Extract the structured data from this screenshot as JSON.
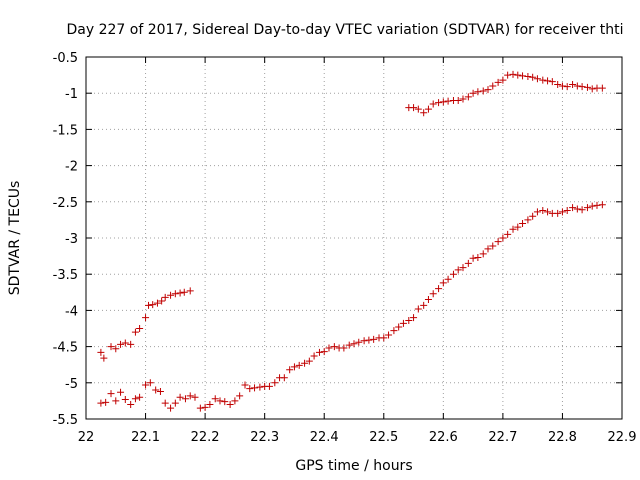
{
  "chart_data": {
    "type": "scatter",
    "title": "Day 227 of 2017, Sidereal Day-to-day VTEC variation (SDTVAR) for receiver thti",
    "xlabel": "GPS time / hours",
    "ylabel": "SDTVAR / TECUs",
    "xlim": [
      22,
      22.9
    ],
    "ylim": [
      -5.5,
      -0.5
    ],
    "xticks": [
      "22",
      "22.1",
      "22.2",
      "22.3",
      "22.4",
      "22.5",
      "22.6",
      "22.7",
      "22.8",
      "22.9"
    ],
    "yticks": [
      "-0.5",
      "-1",
      "-1.5",
      "-2",
      "-2.5",
      "-3",
      "-3.5",
      "-4",
      "-4.5",
      "-5",
      "-5.5"
    ],
    "grid": true,
    "marker": "plus",
    "color": "#c00000",
    "series": [
      {
        "points": [
          [
            22.025,
            -4.58
          ],
          [
            22.03,
            -4.66
          ],
          [
            22.042,
            -4.5
          ],
          [
            22.05,
            -4.53
          ],
          [
            22.058,
            -4.47
          ],
          [
            22.066,
            -4.45
          ],
          [
            22.075,
            -4.47
          ],
          [
            22.083,
            -4.3
          ],
          [
            22.09,
            -4.25
          ],
          [
            22.1,
            -4.1
          ],
          [
            22.105,
            -3.93
          ],
          [
            22.112,
            -3.92
          ],
          [
            22.12,
            -3.9
          ],
          [
            22.127,
            -3.87
          ],
          [
            22.133,
            -3.82
          ],
          [
            22.142,
            -3.79
          ],
          [
            22.15,
            -3.77
          ],
          [
            22.158,
            -3.76
          ],
          [
            22.165,
            -3.75
          ],
          [
            22.175,
            -3.73
          ]
        ]
      },
      {
        "points": [
          [
            22.025,
            -5.28
          ],
          [
            22.033,
            -5.27
          ],
          [
            22.042,
            -5.15
          ],
          [
            22.05,
            -5.25
          ],
          [
            22.058,
            -5.13
          ],
          [
            22.066,
            -5.23
          ],
          [
            22.075,
            -5.3
          ],
          [
            22.083,
            -5.22
          ],
          [
            22.09,
            -5.2
          ],
          [
            22.1,
            -5.03
          ],
          [
            22.108,
            -5.0
          ],
          [
            22.117,
            -5.1
          ],
          [
            22.125,
            -5.12
          ],
          [
            22.133,
            -5.28
          ],
          [
            22.142,
            -5.35
          ],
          [
            22.15,
            -5.28
          ],
          [
            22.158,
            -5.2
          ],
          [
            22.167,
            -5.22
          ],
          [
            22.175,
            -5.18
          ],
          [
            22.183,
            -5.2
          ],
          [
            22.192,
            -5.35
          ],
          [
            22.2,
            -5.34
          ],
          [
            22.208,
            -5.3
          ],
          [
            22.217,
            -5.22
          ],
          [
            22.225,
            -5.25
          ],
          [
            22.233,
            -5.26
          ],
          [
            22.242,
            -5.3
          ],
          [
            22.25,
            -5.25
          ],
          [
            22.258,
            -5.18
          ],
          [
            22.267,
            -5.03
          ],
          [
            22.275,
            -5.08
          ],
          [
            22.283,
            -5.07
          ],
          [
            22.292,
            -5.06
          ],
          [
            22.3,
            -5.05
          ],
          [
            22.308,
            -5.05
          ],
          [
            22.317,
            -5.0
          ],
          [
            22.325,
            -4.93
          ],
          [
            22.333,
            -4.93
          ],
          [
            22.342,
            -4.82
          ],
          [
            22.35,
            -4.78
          ],
          [
            22.358,
            -4.76
          ],
          [
            22.367,
            -4.73
          ],
          [
            22.375,
            -4.7
          ],
          [
            22.383,
            -4.63
          ],
          [
            22.392,
            -4.58
          ],
          [
            22.4,
            -4.57
          ],
          [
            22.408,
            -4.52
          ],
          [
            22.417,
            -4.5
          ],
          [
            22.425,
            -4.52
          ],
          [
            22.433,
            -4.52
          ],
          [
            22.442,
            -4.48
          ],
          [
            22.45,
            -4.46
          ],
          [
            22.458,
            -4.44
          ],
          [
            22.467,
            -4.42
          ],
          [
            22.475,
            -4.41
          ],
          [
            22.483,
            -4.4
          ],
          [
            22.492,
            -4.38
          ],
          [
            22.5,
            -4.38
          ],
          [
            22.508,
            -4.34
          ],
          [
            22.517,
            -4.28
          ],
          [
            22.525,
            -4.23
          ],
          [
            22.533,
            -4.18
          ],
          [
            22.542,
            -4.14
          ],
          [
            22.55,
            -4.1
          ],
          [
            22.558,
            -3.98
          ],
          [
            22.567,
            -3.93
          ],
          [
            22.575,
            -3.85
          ],
          [
            22.583,
            -3.77
          ],
          [
            22.592,
            -3.7
          ],
          [
            22.6,
            -3.62
          ],
          [
            22.608,
            -3.57
          ],
          [
            22.617,
            -3.5
          ],
          [
            22.625,
            -3.44
          ],
          [
            22.633,
            -3.41
          ],
          [
            22.642,
            -3.35
          ],
          [
            22.65,
            -3.28
          ],
          [
            22.658,
            -3.27
          ],
          [
            22.667,
            -3.22
          ],
          [
            22.675,
            -3.15
          ],
          [
            22.683,
            -3.11
          ],
          [
            22.692,
            -3.05
          ],
          [
            22.7,
            -3.0
          ],
          [
            22.708,
            -2.95
          ],
          [
            22.717,
            -2.88
          ],
          [
            22.725,
            -2.85
          ],
          [
            22.733,
            -2.8
          ],
          [
            22.742,
            -2.75
          ],
          [
            22.75,
            -2.7
          ],
          [
            22.758,
            -2.64
          ],
          [
            22.767,
            -2.62
          ],
          [
            22.775,
            -2.64
          ],
          [
            22.783,
            -2.66
          ],
          [
            22.792,
            -2.66
          ],
          [
            22.8,
            -2.64
          ],
          [
            22.808,
            -2.62
          ],
          [
            22.817,
            -2.58
          ],
          [
            22.825,
            -2.6
          ],
          [
            22.833,
            -2.61
          ],
          [
            22.842,
            -2.58
          ],
          [
            22.85,
            -2.56
          ],
          [
            22.858,
            -2.55
          ],
          [
            22.867,
            -2.54
          ]
        ]
      },
      {
        "points": [
          [
            22.542,
            -1.2
          ],
          [
            22.55,
            -1.2
          ],
          [
            22.558,
            -1.22
          ],
          [
            22.567,
            -1.27
          ],
          [
            22.575,
            -1.22
          ],
          [
            22.583,
            -1.15
          ],
          [
            22.592,
            -1.13
          ],
          [
            22.6,
            -1.12
          ],
          [
            22.608,
            -1.11
          ],
          [
            22.617,
            -1.1
          ],
          [
            22.625,
            -1.1
          ],
          [
            22.633,
            -1.08
          ],
          [
            22.642,
            -1.05
          ],
          [
            22.65,
            -1.0
          ],
          [
            22.658,
            -0.98
          ],
          [
            22.667,
            -0.97
          ],
          [
            22.675,
            -0.95
          ],
          [
            22.683,
            -0.9
          ],
          [
            22.692,
            -0.85
          ],
          [
            22.7,
            -0.82
          ],
          [
            22.708,
            -0.75
          ],
          [
            22.717,
            -0.74
          ],
          [
            22.725,
            -0.75
          ],
          [
            22.733,
            -0.76
          ],
          [
            22.742,
            -0.77
          ],
          [
            22.75,
            -0.78
          ],
          [
            22.758,
            -0.8
          ],
          [
            22.767,
            -0.82
          ],
          [
            22.775,
            -0.83
          ],
          [
            22.783,
            -0.84
          ],
          [
            22.792,
            -0.88
          ],
          [
            22.8,
            -0.9
          ],
          [
            22.808,
            -0.91
          ],
          [
            22.817,
            -0.88
          ],
          [
            22.825,
            -0.9
          ],
          [
            22.833,
            -0.91
          ],
          [
            22.842,
            -0.92
          ],
          [
            22.85,
            -0.94
          ],
          [
            22.858,
            -0.93
          ],
          [
            22.867,
            -0.93
          ]
        ]
      }
    ]
  }
}
